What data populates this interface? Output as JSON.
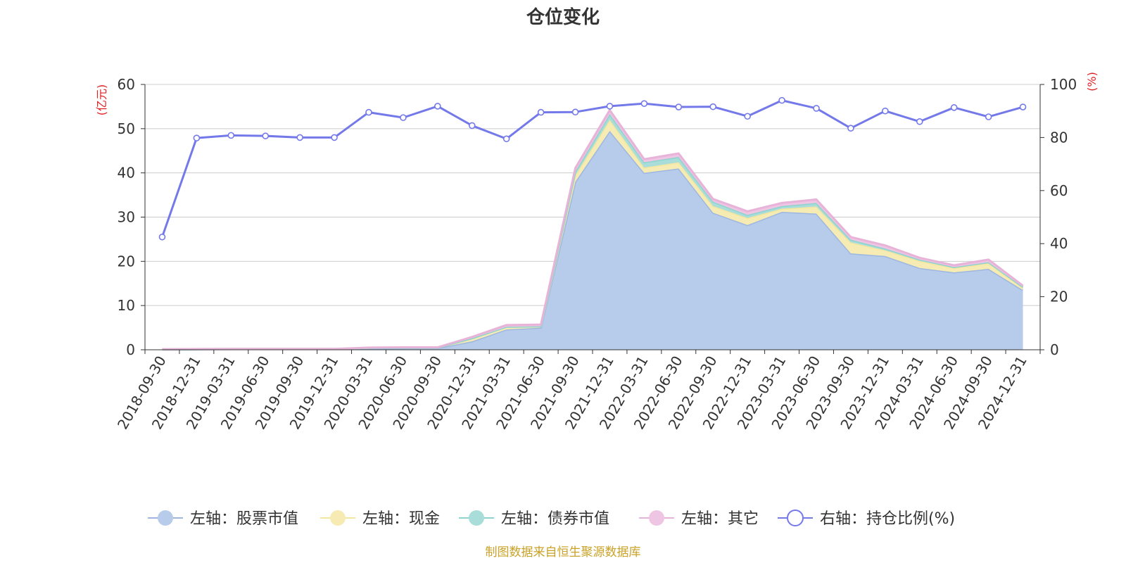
{
  "chart_data": {
    "type": "area",
    "title": "仓位变化",
    "y_left_unit": "(亿元)",
    "y_right_unit": "(%)",
    "ylim_left": [
      0,
      60
    ],
    "ylim_right": [
      0,
      100
    ],
    "y_left_ticks": [
      "0",
      "10",
      "20",
      "30",
      "40",
      "50",
      "60"
    ],
    "y_right_ticks": [
      "0",
      "20",
      "40",
      "60",
      "80",
      "100"
    ],
    "grid": true,
    "legend_position": "bottom-center",
    "categories": [
      "2018-09-30",
      "2018-12-31",
      "2019-03-31",
      "2019-06-30",
      "2019-09-30",
      "2019-12-31",
      "2020-03-31",
      "2020-06-30",
      "2020-09-30",
      "2020-12-31",
      "2021-03-31",
      "2021-06-30",
      "2021-09-30",
      "2021-12-31",
      "2022-03-31",
      "2022-06-30",
      "2022-09-30",
      "2022-12-31",
      "2023-03-31",
      "2023-06-30",
      "2023-09-30",
      "2023-12-31",
      "2024-03-31",
      "2024-06-30",
      "2024-09-30",
      "2024-12-31"
    ],
    "series": [
      {
        "name": "左轴：股票市值",
        "axis": "left",
        "color": "#9db7e0",
        "fill": "#b7cceb",
        "values": [
          0.05,
          0.12,
          0.15,
          0.15,
          0.15,
          0.15,
          0.3,
          0.35,
          0.4,
          1.9,
          4.6,
          5.0,
          38.0,
          49.5,
          40.0,
          41.0,
          31.0,
          28.2,
          31.2,
          30.8,
          21.8,
          21.2,
          18.5,
          17.5,
          18.3,
          13.5
        ]
      },
      {
        "name": "左轴：现金",
        "axis": "left",
        "color": "#f3e6a1",
        "fill": "#f6ebb3",
        "values": [
          0.05,
          0.03,
          0.02,
          0.02,
          0.02,
          0.02,
          0.15,
          0.15,
          0.1,
          0.7,
          0.6,
          0.3,
          1.5,
          2.5,
          1.2,
          1.4,
          1.5,
          1.6,
          0.7,
          1.6,
          2.5,
          1.3,
          1.6,
          1.0,
          1.3,
          0.5
        ]
      },
      {
        "name": "左轴：债券市值",
        "axis": "left",
        "color": "#8fd3cf",
        "fill": "#a8ddd9",
        "values": [
          0,
          0,
          0,
          0,
          0,
          0,
          0,
          0,
          0,
          0,
          0,
          0,
          0.8,
          1.3,
          1.2,
          1.2,
          1.0,
          0.7,
          0.6,
          0.8,
          0.6,
          0.4,
          0.3,
          0.2,
          0.2,
          0.2
        ]
      },
      {
        "name": "左轴：其它",
        "axis": "left",
        "color": "#e8b3d8",
        "fill": "#eec5e2",
        "values": [
          0.02,
          0.02,
          0.02,
          0.02,
          0.02,
          0.02,
          0.05,
          0.05,
          0.05,
          0.3,
          0.4,
          0.4,
          0.8,
          0.9,
          0.7,
          0.8,
          0.6,
          0.8,
          0.7,
          0.8,
          0.6,
          0.7,
          0.4,
          0.4,
          0.6,
          0.3
        ]
      },
      {
        "name": "右轴：持仓比例(%)",
        "axis": "right",
        "color": "#7479ea",
        "values": [
          42.5,
          79.8,
          80.8,
          80.6,
          80.0,
          80.0,
          89.5,
          87.5,
          91.8,
          84.5,
          79.5,
          89.5,
          89.6,
          91.8,
          92.8,
          91.5,
          91.6,
          88.0,
          94.0,
          91.0,
          83.5,
          90.0,
          86.0,
          91.3,
          87.8,
          91.5
        ]
      }
    ],
    "source_note": "制图数据来自恒生聚源数据库"
  }
}
